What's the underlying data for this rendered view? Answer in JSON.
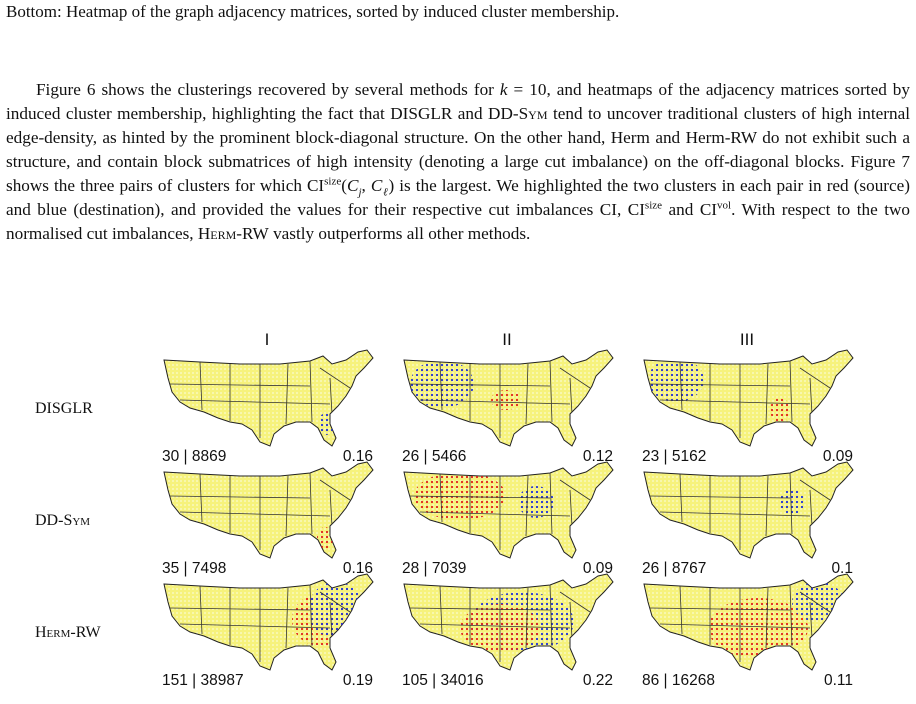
{
  "caption": "Bottom: Heatmap of the graph adjacency matrices, sorted by induced cluster membership.",
  "paragraph": {
    "runs": [
      "Figure 6 shows the clusterings recovered by several methods for ",
      "k",
      " = 10, and heatmaps of the adjacency matrices sorted by induced cluster membership, highlighting the fact that DISGLR and DD-",
      "Sym",
      " tend to uncover traditional clusters of high internal edge-density, as hinted by the prominent block-diagonal structure. On the other hand, Herm and Herm-RW do not exhibit such a structure, and contain block submatrices of high intensity (denoting a large cut imbalance) on the off-diagonal blocks. Figure 7 shows the three pairs of clusters for which CI",
      "size",
      "(",
      "C",
      "j",
      ", ",
      "C",
      "ℓ",
      ")",
      " is the largest. We highlighted the two clusters in each pair in red (source) and blue (destination), and provided the values for their respective cut imbalances CI, CI",
      "size",
      " and CI",
      "vol",
      ". With respect to the two normalised cut imbalances, ",
      "Herm-RW",
      " vastly outperforms all other methods."
    ]
  },
  "figure": {
    "columns": [
      "I",
      "II",
      "III"
    ],
    "rows": [
      {
        "label": "DISGLR",
        "cells": [
          {
            "size_label": "30 | 8869",
            "value": "0.16"
          },
          {
            "size_label": "26 | 5466",
            "value": "0.12"
          },
          {
            "size_label": "23 | 5162",
            "value": "0.09"
          }
        ]
      },
      {
        "label": "DD-Sym",
        "cells": [
          {
            "size_label": "35 | 7498",
            "value": "0.16"
          },
          {
            "size_label": "28 | 7039",
            "value": "0.09"
          },
          {
            "size_label": "26 | 8767",
            "value": "0.1"
          }
        ]
      },
      {
        "label": "Herm-RW",
        "cells": [
          {
            "size_label": "151 | 38987",
            "value": "0.19"
          },
          {
            "size_label": "105 | 34016",
            "value": "0.22"
          },
          {
            "size_label": "86 | 16268",
            "value": "0.11"
          }
        ]
      }
    ]
  }
}
